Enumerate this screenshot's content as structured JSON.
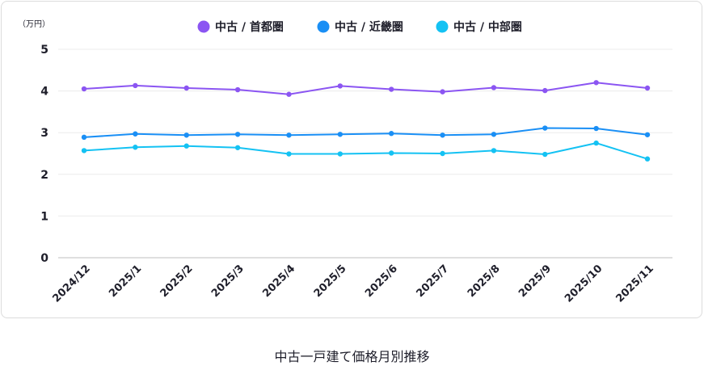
{
  "caption": "中古一戸建て価格月別推移",
  "chart_data": {
    "type": "line",
    "title": "中古一戸建て価格月別推移",
    "unit_label": "（万円）",
    "xlabel": "",
    "ylabel": "（万円）",
    "ylim": [
      0,
      5
    ],
    "yticks": [
      0,
      1,
      2,
      3,
      4,
      5
    ],
    "grid": true,
    "legend_position": "top-center",
    "categories": [
      "2024/12",
      "2025/1",
      "2025/2",
      "2025/3",
      "2025/4",
      "2025/5",
      "2025/6",
      "2025/7",
      "2025/8",
      "2025/9",
      "2025/10",
      "2025/11"
    ],
    "series": [
      {
        "name": "中古 / 首都圏",
        "color": "#8b55f2",
        "values": [
          4.05,
          4.13,
          4.07,
          4.03,
          3.92,
          4.12,
          4.04,
          3.98,
          4.08,
          4.01,
          4.2,
          4.07
        ]
      },
      {
        "name": "中古 / 近畿圏",
        "color": "#1a8ff5",
        "values": [
          2.89,
          2.97,
          2.94,
          2.96,
          2.94,
          2.96,
          2.98,
          2.94,
          2.96,
          3.11,
          3.1,
          2.95
        ]
      },
      {
        "name": "中古 / 中部圏",
        "color": "#14c2f3",
        "values": [
          2.57,
          2.65,
          2.68,
          2.64,
          2.49,
          2.49,
          2.51,
          2.5,
          2.57,
          2.48,
          2.75,
          2.37
        ]
      }
    ]
  }
}
